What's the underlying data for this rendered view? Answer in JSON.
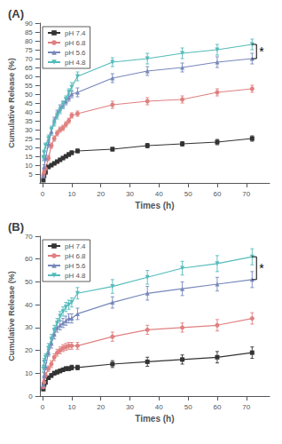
{
  "chart_data": [
    {
      "type": "line",
      "title": "(A)",
      "xlabel": "Times (h)",
      "ylabel": "Cumulative Release (%)",
      "xlim": [
        -1,
        78
      ],
      "xticks": [
        0,
        10,
        20,
        30,
        40,
        50,
        60,
        70
      ],
      "ylim": [
        0,
        90
      ],
      "yticks": [
        5,
        10,
        15,
        20,
        25,
        30,
        35,
        40,
        45,
        50,
        55,
        60,
        65,
        70,
        75,
        80,
        85,
        90
      ],
      "grid": false,
      "legend": "upper left",
      "series": [
        {
          "name": "pH 7.4",
          "color": "#333333",
          "marker": "square",
          "x": [
            0.25,
            0.5,
            1,
            2,
            3,
            4,
            5,
            6,
            7,
            8,
            9,
            10,
            12,
            24,
            36,
            48,
            60,
            72
          ],
          "values": [
            1.5,
            4,
            6,
            9,
            10,
            11,
            12,
            13,
            14,
            15,
            16,
            17,
            18,
            19,
            21,
            22,
            23,
            25
          ],
          "errors": [
            0.4,
            0.7,
            0.7,
            0.8,
            0.8,
            0.8,
            0.8,
            0.8,
            0.8,
            0.8,
            1.0,
            1.0,
            1.0,
            1.0,
            1.2,
            1.2,
            1.5,
            1.5
          ]
        },
        {
          "name": "pH 6.8",
          "color": "#e08080",
          "marker": "circle",
          "x": [
            0.25,
            0.5,
            1,
            2,
            3,
            4,
            5,
            6,
            7,
            8,
            9,
            10,
            12,
            24,
            36,
            48,
            60,
            72
          ],
          "values": [
            4,
            6,
            8,
            14,
            21,
            25,
            28,
            30,
            31,
            33,
            35,
            38,
            39,
            44,
            46,
            47,
            51,
            53
          ],
          "errors": [
            0.8,
            1,
            1,
            1.5,
            1.5,
            1.5,
            1.5,
            1.5,
            1.5,
            1.5,
            1.5,
            1.5,
            1.5,
            2,
            2,
            2,
            2,
            2
          ]
        },
        {
          "name": "pH 5.6",
          "color": "#7788bb",
          "marker": "triangle",
          "x": [
            0.25,
            0.5,
            1,
            2,
            3,
            4,
            5,
            6,
            7,
            8,
            9,
            10,
            12,
            24,
            36,
            48,
            60,
            72
          ],
          "values": [
            4,
            9,
            14,
            22,
            29,
            35,
            39,
            42,
            44,
            46,
            48,
            50,
            51,
            59,
            63,
            65,
            68,
            70
          ],
          "errors": [
            0.8,
            1.2,
            1.5,
            2,
            2,
            2,
            2,
            2,
            2,
            2,
            2,
            2,
            2.5,
            2.5,
            2.5,
            2.5,
            3,
            3
          ]
        },
        {
          "name": "pH 4.8",
          "color": "#55bbbb",
          "marker": "triangle_down",
          "x": [
            0.25,
            0.5,
            1,
            2,
            3,
            4,
            5,
            6,
            7,
            8,
            9,
            10,
            12,
            24,
            36,
            48,
            60,
            72
          ],
          "values": [
            14,
            17,
            21,
            25,
            30,
            34,
            38,
            41,
            44,
            47,
            51,
            54,
            60,
            68,
            70,
            73,
            75,
            78
          ],
          "errors": [
            1.5,
            1.5,
            1.5,
            2,
            2,
            2,
            2,
            2,
            2,
            2,
            2,
            2.5,
            2.5,
            2.5,
            3,
            3,
            3,
            3
          ]
        }
      ],
      "annotations": [
        {
          "text": "*",
          "x": 73.5,
          "y1": 70,
          "y2": 78
        }
      ]
    },
    {
      "type": "line",
      "title": "(B)",
      "xlabel": "Times (h)",
      "ylabel": "Cumulative Release (%)",
      "xlim": [
        -1,
        78
      ],
      "xticks": [
        0,
        10,
        20,
        30,
        40,
        50,
        60,
        70
      ],
      "ylim": [
        0,
        70
      ],
      "yticks": [
        0,
        10,
        20,
        30,
        40,
        50,
        60,
        70
      ],
      "grid": false,
      "legend": "upper left",
      "series": [
        {
          "name": "pH 7.4",
          "color": "#333333",
          "marker": "square",
          "x": [
            0.25,
            0.5,
            1,
            2,
            3,
            4,
            5,
            6,
            7,
            8,
            9,
            10,
            12,
            24,
            36,
            48,
            60,
            72
          ],
          "values": [
            3,
            5,
            6,
            8,
            9,
            10,
            10.5,
            11,
            11.5,
            12,
            12,
            12.5,
            12.5,
            14,
            15,
            16,
            17,
            19
          ],
          "errors": [
            0.5,
            0.8,
            0.8,
            0.8,
            0.8,
            0.8,
            0.8,
            0.8,
            0.8,
            0.8,
            0.8,
            1.0,
            1.0,
            1.5,
            2,
            2,
            2.5,
            2.5
          ]
        },
        {
          "name": "pH 6.8",
          "color": "#e08080",
          "marker": "circle",
          "x": [
            0.25,
            0.5,
            1,
            2,
            3,
            4,
            5,
            6,
            7,
            8,
            9,
            10,
            12,
            24,
            36,
            48,
            60,
            72
          ],
          "values": [
            4,
            6,
            9,
            12,
            14,
            17,
            19,
            20,
            21,
            21.5,
            22,
            22,
            22,
            26,
            29,
            30,
            31,
            34
          ],
          "errors": [
            0.8,
            1,
            1.2,
            1.2,
            1.5,
            1.5,
            1.5,
            1.5,
            1.5,
            1.5,
            1.5,
            1.5,
            1.5,
            2,
            2,
            2,
            2.5,
            2.5
          ]
        },
        {
          "name": "pH 5.6",
          "color": "#7788bb",
          "marker": "triangle",
          "x": [
            0.25,
            0.5,
            1,
            2,
            3,
            4,
            5,
            6,
            7,
            8,
            9,
            10,
            12,
            24,
            36,
            48,
            60,
            72
          ],
          "values": [
            5,
            9,
            13,
            19,
            23,
            27,
            30,
            31,
            32,
            33,
            34,
            34,
            36,
            41,
            45,
            47,
            49,
            51
          ],
          "errors": [
            1,
            1.2,
            1.5,
            1.5,
            2,
            2,
            2,
            2,
            2,
            2,
            2,
            2,
            2.5,
            2.5,
            3,
            3,
            3,
            3.5
          ]
        },
        {
          "name": "pH 4.8",
          "color": "#55bbbb",
          "marker": "triangle_down",
          "x": [
            0.25,
            0.5,
            1,
            2,
            3,
            4,
            5,
            6,
            7,
            8,
            9,
            10,
            12,
            24,
            36,
            48,
            60,
            72
          ],
          "values": [
            12,
            15,
            17,
            21,
            25,
            29,
            32,
            35,
            37,
            39,
            40,
            41,
            45,
            48,
            52,
            56,
            58,
            61
          ],
          "errors": [
            1.5,
            1.5,
            1.5,
            2,
            2,
            2,
            2,
            2,
            2,
            2,
            2,
            2,
            2.5,
            3,
            3,
            3,
            3.5,
            3.5
          ]
        }
      ],
      "annotations": [
        {
          "text": "*",
          "x": 73.5,
          "y1": 51,
          "y2": 61
        }
      ]
    }
  ]
}
